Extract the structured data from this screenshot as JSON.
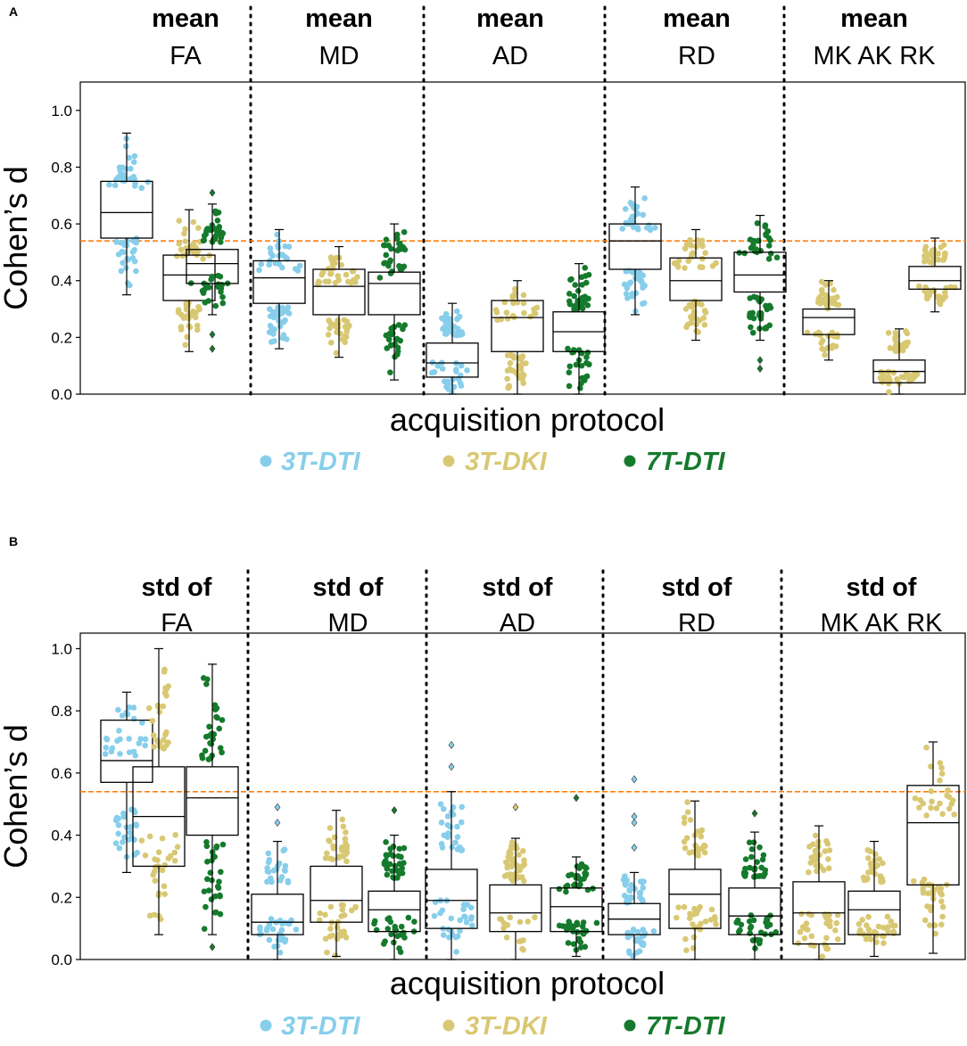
{
  "colors": {
    "dti3t": "#87ceeb",
    "dki3t": "#d9c873",
    "dti7t": "#157a2c",
    "threshold": "#ff7f0e",
    "box": "#000000"
  },
  "legend": [
    {
      "key": "dti3t",
      "label": "3T-DTI"
    },
    {
      "key": "dki3t",
      "label": "3T-DKI"
    },
    {
      "key": "dti7t",
      "label": "7T-DTI"
    }
  ],
  "chart_data": [
    {
      "type": "box-swarm",
      "panel": "A",
      "ylabel": "Cohen’s d",
      "xlabel": "acquisition protocol",
      "ylim": [
        0,
        1.1
      ],
      "yticks": [
        0.0,
        0.2,
        0.4,
        0.6,
        0.8,
        1.0
      ],
      "threshold": 0.54,
      "groups": [
        {
          "line1": "mean",
          "line2": "FA"
        },
        {
          "line1": "mean",
          "line2": "MD"
        },
        {
          "line1": "mean",
          "line2": "AD"
        },
        {
          "line1": "mean",
          "line2": "RD"
        },
        {
          "line1": "mean",
          "line2": "MK AK RK"
        }
      ],
      "boxes": [
        {
          "group": 0,
          "series": "dti3t",
          "min": 0.35,
          "q1": 0.55,
          "median": 0.64,
          "q3": 0.75,
          "max": 0.92,
          "outliers": []
        },
        {
          "group": 0,
          "series": "dki3t",
          "min": 0.15,
          "q1": 0.33,
          "median": 0.42,
          "q3": 0.49,
          "max": 0.65,
          "outliers": []
        },
        {
          "group": 0,
          "series": "dti7t",
          "min": 0.28,
          "q1": 0.39,
          "median": 0.46,
          "q3": 0.51,
          "max": 0.67,
          "outliers": [
            0.16,
            0.21,
            0.71
          ]
        },
        {
          "group": 1,
          "series": "dti3t",
          "min": 0.16,
          "q1": 0.32,
          "median": 0.41,
          "q3": 0.47,
          "max": 0.58,
          "outliers": []
        },
        {
          "group": 1,
          "series": "dki3t",
          "min": 0.13,
          "q1": 0.28,
          "median": 0.38,
          "q3": 0.44,
          "max": 0.52,
          "outliers": []
        },
        {
          "group": 1,
          "series": "dti7t",
          "min": 0.05,
          "q1": 0.28,
          "median": 0.39,
          "q3": 0.43,
          "max": 0.6,
          "outliers": []
        },
        {
          "group": 2,
          "series": "dti3t",
          "min": 0.0,
          "q1": 0.06,
          "median": 0.11,
          "q3": 0.18,
          "max": 0.32,
          "outliers": []
        },
        {
          "group": 2,
          "series": "dki3t",
          "min": 0.0,
          "q1": 0.15,
          "median": 0.27,
          "q3": 0.33,
          "max": 0.4,
          "outliers": []
        },
        {
          "group": 2,
          "series": "dti7t",
          "min": 0.0,
          "q1": 0.15,
          "median": 0.22,
          "q3": 0.29,
          "max": 0.46,
          "outliers": []
        },
        {
          "group": 3,
          "series": "dti3t",
          "min": 0.28,
          "q1": 0.44,
          "median": 0.54,
          "q3": 0.6,
          "max": 0.73,
          "outliers": []
        },
        {
          "group": 3,
          "series": "dki3t",
          "min": 0.19,
          "q1": 0.33,
          "median": 0.4,
          "q3": 0.48,
          "max": 0.58,
          "outliers": []
        },
        {
          "group": 3,
          "series": "dti7t",
          "min": 0.19,
          "q1": 0.36,
          "median": 0.42,
          "q3": 0.5,
          "max": 0.63,
          "outliers": [
            0.09,
            0.12
          ]
        },
        {
          "group": 4,
          "series": "dki3t",
          "min": 0.12,
          "q1": 0.21,
          "median": 0.27,
          "q3": 0.3,
          "max": 0.4,
          "outliers": []
        },
        {
          "group": 4,
          "series": "dki3t",
          "min": 0.0,
          "q1": 0.04,
          "median": 0.08,
          "q3": 0.12,
          "max": 0.23,
          "outliers": []
        },
        {
          "group": 4,
          "series": "dki3t",
          "min": 0.29,
          "q1": 0.37,
          "median": 0.4,
          "q3": 0.45,
          "max": 0.55,
          "outliers": []
        }
      ]
    },
    {
      "type": "box-swarm",
      "panel": "B",
      "ylabel": "Cohen’s d",
      "xlabel": "acquisition protocol",
      "ylim": [
        0,
        1.05
      ],
      "yticks": [
        0.0,
        0.2,
        0.4,
        0.6,
        0.8,
        1.0
      ],
      "threshold": 0.54,
      "groups": [
        {
          "line1": "std of",
          "line2": "FA"
        },
        {
          "line1": "std of",
          "line2": "MD"
        },
        {
          "line1": "std of",
          "line2": "AD"
        },
        {
          "line1": "std of",
          "line2": "RD"
        },
        {
          "line1": "std of",
          "line2": "MK AK RK"
        }
      ],
      "boxes": [
        {
          "group": 0,
          "series": "dti3t",
          "min": 0.28,
          "q1": 0.57,
          "median": 0.64,
          "q3": 0.77,
          "max": 0.86,
          "outliers": []
        },
        {
          "group": 0,
          "series": "dki3t",
          "min": 0.08,
          "q1": 0.3,
          "median": 0.46,
          "q3": 0.62,
          "max": 1.0,
          "outliers": []
        },
        {
          "group": 0,
          "series": "dti7t",
          "min": 0.08,
          "q1": 0.4,
          "median": 0.52,
          "q3": 0.62,
          "max": 0.95,
          "outliers": [
            0.04
          ]
        },
        {
          "group": 1,
          "series": "dti3t",
          "min": 0.0,
          "q1": 0.08,
          "median": 0.12,
          "q3": 0.21,
          "max": 0.38,
          "outliers": [
            0.44,
            0.49
          ]
        },
        {
          "group": 1,
          "series": "dki3t",
          "min": 0.01,
          "q1": 0.12,
          "median": 0.19,
          "q3": 0.3,
          "max": 0.48,
          "outliers": []
        },
        {
          "group": 1,
          "series": "dti7t",
          "min": 0.0,
          "q1": 0.09,
          "median": 0.16,
          "q3": 0.22,
          "max": 0.4,
          "outliers": [
            0.48
          ]
        },
        {
          "group": 2,
          "series": "dti3t",
          "min": 0.0,
          "q1": 0.1,
          "median": 0.19,
          "q3": 0.29,
          "max": 0.54,
          "outliers": [
            0.62,
            0.69
          ]
        },
        {
          "group": 2,
          "series": "dki3t",
          "min": 0.0,
          "q1": 0.09,
          "median": 0.15,
          "q3": 0.24,
          "max": 0.39,
          "outliers": [
            0.49
          ]
        },
        {
          "group": 2,
          "series": "dti7t",
          "min": 0.01,
          "q1": 0.09,
          "median": 0.17,
          "q3": 0.23,
          "max": 0.33,
          "outliers": [
            0.52
          ]
        },
        {
          "group": 3,
          "series": "dti3t",
          "min": 0.0,
          "q1": 0.08,
          "median": 0.13,
          "q3": 0.18,
          "max": 0.28,
          "outliers": [
            0.36,
            0.44,
            0.46,
            0.58
          ]
        },
        {
          "group": 3,
          "series": "dki3t",
          "min": 0.0,
          "q1": 0.1,
          "median": 0.21,
          "q3": 0.29,
          "max": 0.51,
          "outliers": []
        },
        {
          "group": 3,
          "series": "dti7t",
          "min": 0.0,
          "q1": 0.08,
          "median": 0.14,
          "q3": 0.23,
          "max": 0.41,
          "outliers": [
            0.47
          ]
        },
        {
          "group": 4,
          "series": "dki3t",
          "min": 0.0,
          "q1": 0.05,
          "median": 0.15,
          "q3": 0.25,
          "max": 0.43,
          "outliers": []
        },
        {
          "group": 4,
          "series": "dki3t",
          "min": 0.01,
          "q1": 0.08,
          "median": 0.16,
          "q3": 0.22,
          "max": 0.38,
          "outliers": []
        },
        {
          "group": 4,
          "series": "dki3t",
          "min": 0.02,
          "q1": 0.24,
          "median": 0.44,
          "q3": 0.56,
          "max": 0.7,
          "outliers": []
        }
      ]
    }
  ]
}
